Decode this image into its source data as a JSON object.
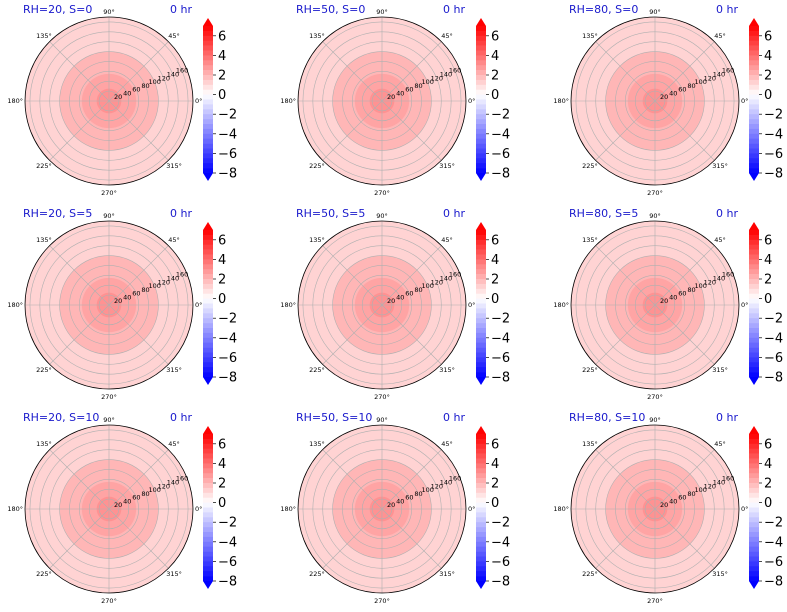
{
  "chart_data": {
    "type": "polar-contour-grid",
    "cmap": "bwr",
    "colors": {
      "max": "#ff0000",
      "mid": "#ffffff",
      "min": "#0000ff",
      "title": "#1a1acc"
    },
    "angle_ticks": [
      "0°",
      "45°",
      "90°",
      "135°",
      "180°",
      "225°",
      "270°",
      "315°"
    ],
    "radial_ticks": [
      "20",
      "40",
      "60",
      "80",
      "100",
      "120",
      "140",
      "160"
    ],
    "rmax": 170,
    "colorbar": {
      "ticks": [
        "6",
        "4",
        "2",
        "0",
        "−2",
        "−4",
        "−6",
        "−8"
      ],
      "tick_values": [
        6,
        4,
        2,
        0,
        -2,
        -4,
        -6,
        -8
      ],
      "range": [
        -8,
        7
      ],
      "extend": "both"
    },
    "field_levels": [
      {
        "r_to": 25,
        "value": 3.0
      },
      {
        "r_to": 55,
        "value": 2.5
      },
      {
        "r_to": 100,
        "value": 2.0
      },
      {
        "r_to": 170,
        "value": 1.2
      }
    ],
    "panels": [
      {
        "title": "RH=20, S=0",
        "time": "0 hr"
      },
      {
        "title": "RH=50, S=0",
        "time": "0 hr"
      },
      {
        "title": "RH=80, S=0",
        "time": "0 hr"
      },
      {
        "title": "RH=20, S=5",
        "time": "0 hr"
      },
      {
        "title": "RH=50, S=5",
        "time": "0 hr"
      },
      {
        "title": "RH=80, S=5",
        "time": "0 hr"
      },
      {
        "title": "RH=20, S=10",
        "time": "0 hr"
      },
      {
        "title": "RH=50, S=10",
        "time": "0 hr"
      },
      {
        "title": "RH=80, S=10",
        "time": "0 hr"
      }
    ]
  }
}
